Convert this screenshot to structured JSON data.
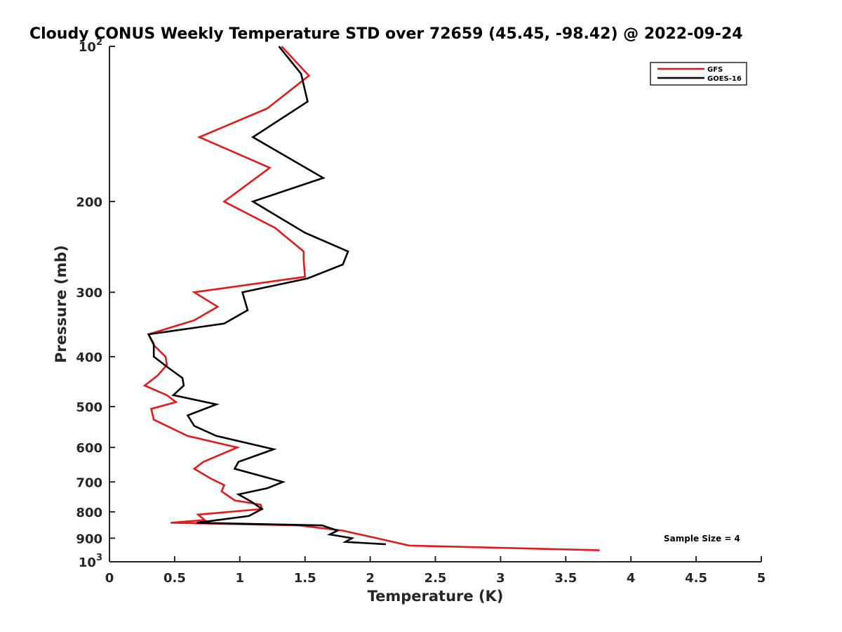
{
  "chart_data": {
    "type": "line",
    "title": "Cloudy CONUS Weekly Temperature STD over 72659 (45.45, -98.42) @ 2022-09-24",
    "xlabel": "Temperature (K)",
    "ylabel": "Pressure (mb)",
    "xlim": [
      0,
      5
    ],
    "ylim": [
      100,
      1000
    ],
    "yscale": "log",
    "y_reversed": true,
    "x_ticks": [
      "0",
      "0.5",
      "1",
      "1.5",
      "2",
      "2.5",
      "3",
      "3.5",
      "4",
      "4.5",
      "5"
    ],
    "y_ticks": [
      {
        "value": 100,
        "label": "10",
        "sup": "2"
      },
      {
        "value": 200,
        "label": "200",
        "sup": ""
      },
      {
        "value": 300,
        "label": "300",
        "sup": ""
      },
      {
        "value": 400,
        "label": "400",
        "sup": ""
      },
      {
        "value": 500,
        "label": "500",
        "sup": ""
      },
      {
        "value": 600,
        "label": "600",
        "sup": ""
      },
      {
        "value": 700,
        "label": "700",
        "sup": ""
      },
      {
        "value": 800,
        "label": "800",
        "sup": ""
      },
      {
        "value": 900,
        "label": "900",
        "sup": ""
      },
      {
        "value": 1000,
        "label": "10",
        "sup": "3"
      }
    ],
    "grid": false,
    "legend_position": "top-right",
    "annotation": "Sample Size = 4",
    "series": [
      {
        "name": "GFS",
        "color": "#e41a1a",
        "points": [
          [
            1.32,
            100
          ],
          [
            1.53,
            114
          ],
          [
            1.21,
            132
          ],
          [
            0.69,
            150
          ],
          [
            1.23,
            172
          ],
          [
            0.88,
            200
          ],
          [
            1.27,
            225
          ],
          [
            1.49,
            250
          ],
          [
            1.49,
            260
          ],
          [
            1.5,
            280
          ],
          [
            0.65,
            300
          ],
          [
            0.83,
            320
          ],
          [
            0.65,
            340
          ],
          [
            0.3,
            362
          ],
          [
            0.34,
            380
          ],
          [
            0.43,
            400
          ],
          [
            0.44,
            415
          ],
          [
            0.37,
            435
          ],
          [
            0.27,
            455
          ],
          [
            0.44,
            475
          ],
          [
            0.51,
            490
          ],
          [
            0.32,
            505
          ],
          [
            0.34,
            530
          ],
          [
            0.6,
            570
          ],
          [
            0.98,
            600
          ],
          [
            0.72,
            640
          ],
          [
            0.65,
            660
          ],
          [
            0.78,
            690
          ],
          [
            0.88,
            710
          ],
          [
            0.86,
            730
          ],
          [
            0.96,
            760
          ],
          [
            1.16,
            775
          ],
          [
            1.17,
            790
          ],
          [
            0.68,
            810
          ],
          [
            0.73,
            830
          ],
          [
            0.47,
            840
          ],
          [
            0.49,
            840
          ],
          [
            1.45,
            850
          ],
          [
            1.79,
            870
          ],
          [
            2.05,
            900
          ],
          [
            2.3,
            930
          ],
          [
            3.76,
            950
          ]
        ]
      },
      {
        "name": "GOES-16",
        "color": "#000000",
        "points": [
          [
            1.3,
            100
          ],
          [
            1.47,
            113
          ],
          [
            1.52,
            128
          ],
          [
            1.1,
            150
          ],
          [
            1.64,
            180
          ],
          [
            1.1,
            200
          ],
          [
            1.5,
            230
          ],
          [
            1.83,
            250
          ],
          [
            1.79,
            265
          ],
          [
            1.52,
            282
          ],
          [
            1.02,
            300
          ],
          [
            1.06,
            325
          ],
          [
            0.88,
            345
          ],
          [
            0.3,
            362
          ],
          [
            0.34,
            378
          ],
          [
            0.34,
            400
          ],
          [
            0.45,
            420
          ],
          [
            0.56,
            440
          ],
          [
            0.57,
            455
          ],
          [
            0.49,
            475
          ],
          [
            0.82,
            495
          ],
          [
            0.6,
            520
          ],
          [
            0.65,
            545
          ],
          [
            0.82,
            570
          ],
          [
            1.26,
            605
          ],
          [
            0.99,
            640
          ],
          [
            0.96,
            660
          ],
          [
            1.15,
            680
          ],
          [
            1.33,
            700
          ],
          [
            1.21,
            720
          ],
          [
            0.99,
            740
          ],
          [
            1.09,
            765
          ],
          [
            1.17,
            790
          ],
          [
            1.07,
            815
          ],
          [
            0.67,
            840
          ],
          [
            1.63,
            850
          ],
          [
            1.75,
            870
          ],
          [
            1.69,
            885
          ],
          [
            1.86,
            900
          ],
          [
            1.81,
            915
          ],
          [
            2.12,
            925
          ]
        ]
      }
    ]
  }
}
